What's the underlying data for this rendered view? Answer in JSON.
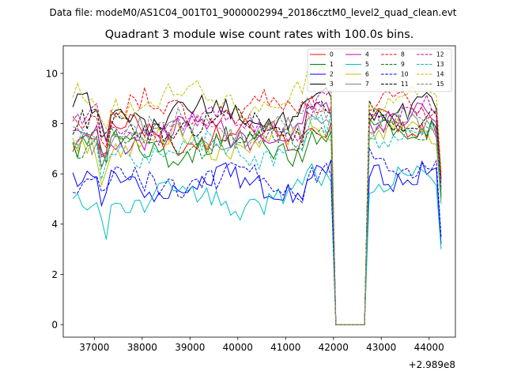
{
  "chart_data": {
    "type": "line",
    "suptitle": "Data file: modeM0/AS1C04_001T01_9000002994_20186cztM0_level2_quad_clean.evt",
    "title": "Quadrant 3 module wise count rates with 100.0s bins.",
    "xlabel": "",
    "ylabel": "",
    "x_offset_label": "+2.989e8",
    "xlim": [
      36350,
      44550
    ],
    "ylim": [
      -0.5,
      11.1
    ],
    "xticks": [
      37000,
      38000,
      39000,
      40000,
      41000,
      42000,
      43000,
      44000
    ],
    "yticks": [
      0,
      2,
      4,
      6,
      8,
      10
    ],
    "x_start": 36550,
    "x_step": 100,
    "gap": [
      42000,
      42700
    ],
    "legend_location": "top-right",
    "series": [
      {
        "name": "0",
        "color": "#ff0000",
        "dash": false,
        "level": 7.5,
        "amp": 0.45,
        "phase": 0.0,
        "post": 7.9
      },
      {
        "name": "1",
        "color": "#008000",
        "dash": false,
        "level": 7.1,
        "amp": 0.4,
        "phase": 0.7,
        "post": 7.8
      },
      {
        "name": "2",
        "color": "#0000ff",
        "dash": false,
        "level": 5.6,
        "amp": 0.4,
        "phase": 1.3,
        "post": 6.0
      },
      {
        "name": "3",
        "color": "#000000",
        "dash": false,
        "level": 8.4,
        "amp": 0.45,
        "phase": 2.1,
        "post": 8.6
      },
      {
        "name": "4",
        "color": "#bf00bf",
        "dash": false,
        "level": 7.6,
        "amp": 0.45,
        "phase": 2.8,
        "post": 8.2
      },
      {
        "name": "5",
        "color": "#00bfbf",
        "dash": false,
        "level": 5.0,
        "amp": 0.4,
        "phase": 3.4,
        "post": 5.8
      },
      {
        "name": "6",
        "color": "#bfbf00",
        "dash": false,
        "level": 7.2,
        "amp": 0.4,
        "phase": 4.0,
        "post": 7.6
      },
      {
        "name": "7",
        "color": "#808080",
        "dash": false,
        "level": 7.6,
        "amp": 0.4,
        "phase": 4.6,
        "post": 8.0
      },
      {
        "name": "8",
        "color": "#ff0000",
        "dash": true,
        "level": 8.5,
        "amp": 0.5,
        "phase": 5.1,
        "post": 8.8
      },
      {
        "name": "9",
        "color": "#008000",
        "dash": true,
        "level": 7.3,
        "amp": 0.4,
        "phase": 5.7,
        "post": 8.0
      },
      {
        "name": "10",
        "color": "#0000ff",
        "dash": true,
        "level": 5.7,
        "amp": 0.4,
        "phase": 0.4,
        "post": 6.3
      },
      {
        "name": "11",
        "color": "#000000",
        "dash": true,
        "level": 7.9,
        "amp": 0.4,
        "phase": 1.0,
        "post": 8.3
      },
      {
        "name": "12",
        "color": "#bf00bf",
        "dash": true,
        "level": 8.0,
        "amp": 0.45,
        "phase": 1.7,
        "post": 8.5
      },
      {
        "name": "13",
        "color": "#00bfbf",
        "dash": true,
        "level": 7.0,
        "amp": 0.4,
        "phase": 2.4,
        "post": 7.6
      },
      {
        "name": "14",
        "color": "#bfbf00",
        "dash": true,
        "level": 9.0,
        "amp": 0.5,
        "phase": 3.0,
        "post": 9.0
      },
      {
        "name": "15",
        "color": "#808080",
        "dash": true,
        "level": 7.8,
        "amp": 0.4,
        "phase": 3.7,
        "post": 8.2
      }
    ]
  }
}
